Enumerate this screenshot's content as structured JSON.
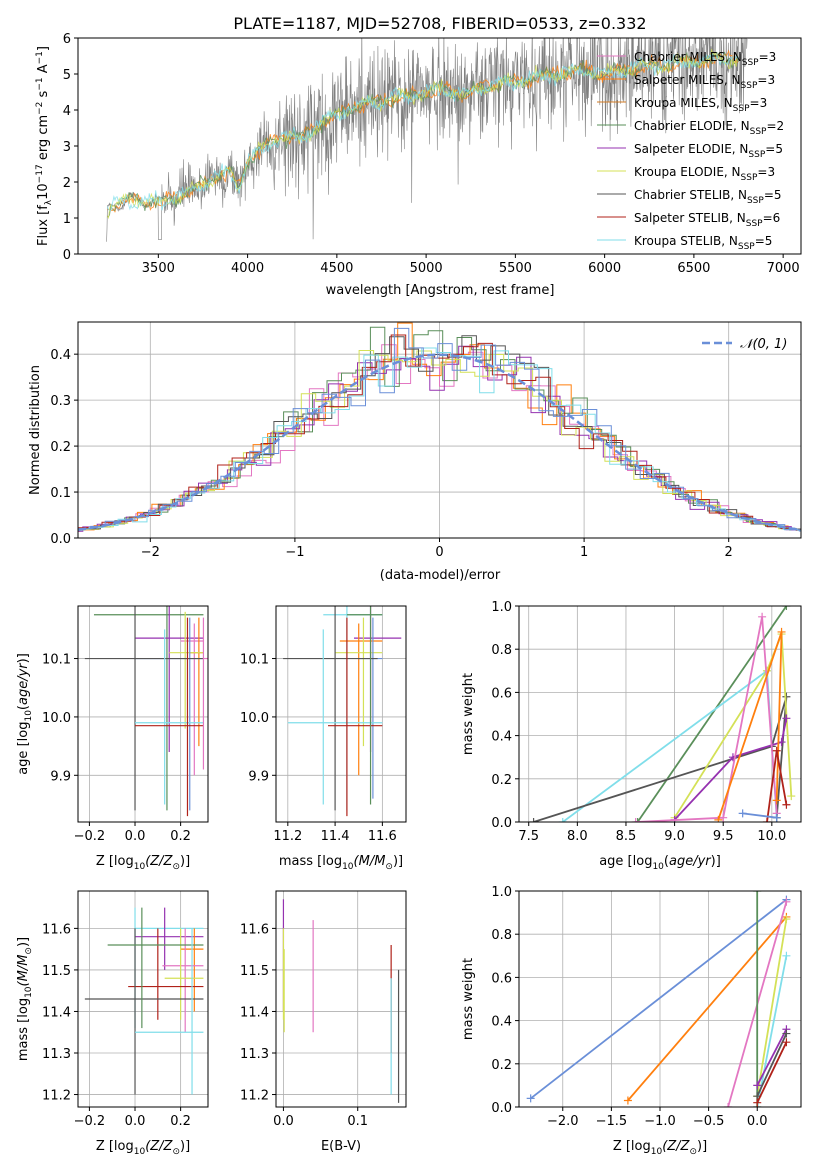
{
  "title": "PLATE=1187, MJD=52708, FIBERID=0533, z=0.332",
  "legend_colors": [
    "#e377c2",
    "#ff7f0e",
    "#d27a22",
    "#5a8f5a",
    "#9532b0",
    "#d4e157",
    "#555555",
    "#b0221a",
    "#80deea",
    "#6a8fd8"
  ],
  "chart_data": [
    {
      "type": "line",
      "panel": "spectrum",
      "xlabel": "wavelength [Angstrom, rest frame]",
      "ylabel": "Flux [f_λ 10^-17 erg cm^-2 s^-1 A^-1]",
      "xlim": [
        3050,
        7100
      ],
      "ylim": [
        0,
        6
      ],
      "x_ticks": [
        3500,
        4000,
        4500,
        5000,
        5500,
        6000,
        6500,
        7000
      ],
      "y_ticks": [
        0,
        1,
        2,
        3,
        4,
        5,
        6
      ],
      "legend": [
        {
          "name": "Chabrier MILES, N_SSP=3",
          "color": "#e377c2"
        },
        {
          "name": "Salpeter MILES, N_SSP=3",
          "color": "#ff7f0e"
        },
        {
          "name": "Kroupa MILES, N_SSP=3",
          "color": "#d27a22"
        },
        {
          "name": "Chabrier ELODIE, N_SSP=2",
          "color": "#5a8f5a"
        },
        {
          "name": "Salpeter ELODIE, N_SSP=5",
          "color": "#9532b0"
        },
        {
          "name": "Kroupa ELODIE, N_SSP=3",
          "color": "#d4e157"
        },
        {
          "name": "Chabrier STELIB, N_SSP=5",
          "color": "#555555"
        },
        {
          "name": "Salpeter STELIB, N_SSP=6",
          "color": "#b0221a"
        },
        {
          "name": "Kroupa STELIB, N_SSP=5",
          "color": "#80deea"
        }
      ],
      "legend_text": {
        "l0": "Chabrier MILES, N",
        "l1": "Salpeter MILES, N",
        "l2": "Kroupa MILES, N",
        "l3": "Chabrier ELODIE, N",
        "l4": "Salpeter ELODIE, N",
        "l5": "Kroupa ELODIE, N",
        "l6": "Chabrier STELIB, N",
        "l7": "Salpeter STELIB, N",
        "l8": "Kroupa STELIB, N",
        "sub": "SSP",
        "v0": "=3",
        "v1": "=3",
        "v2": "=3",
        "v3": "=2",
        "v4": "=5",
        "v5": "=3",
        "v6": "=5",
        "v7": "=6",
        "v8": "=5"
      },
      "continuum_points": [
        [
          3210,
          0
        ],
        [
          3215,
          1.2
        ],
        [
          3250,
          1.35
        ],
        [
          3300,
          1.45
        ],
        [
          3400,
          1.5
        ],
        [
          3500,
          1.4
        ],
        [
          3600,
          1.6
        ],
        [
          3700,
          1.8
        ],
        [
          3800,
          2.1
        ],
        [
          3900,
          2.3
        ],
        [
          3950,
          1.8
        ],
        [
          4000,
          2.6
        ],
        [
          4100,
          3.0
        ],
        [
          4200,
          3.3
        ],
        [
          4300,
          3.2
        ],
        [
          4400,
          3.6
        ],
        [
          4500,
          3.9
        ],
        [
          4600,
          4.1
        ],
        [
          4700,
          4.2
        ],
        [
          4800,
          4.3
        ],
        [
          4900,
          4.4
        ],
        [
          5000,
          4.5
        ],
        [
          5100,
          4.6
        ],
        [
          5200,
          4.4
        ],
        [
          5300,
          4.6
        ],
        [
          5400,
          4.7
        ],
        [
          5500,
          4.8
        ],
        [
          5600,
          4.9
        ],
        [
          5700,
          5.0
        ],
        [
          5800,
          5.05
        ],
        [
          5900,
          5.1
        ],
        [
          6000,
          5.0
        ],
        [
          6100,
          5.1
        ],
        [
          6200,
          5.2
        ],
        [
          6300,
          5.25
        ],
        [
          6400,
          5.3
        ],
        [
          6500,
          5.35
        ],
        [
          6600,
          5.4
        ],
        [
          6700,
          5.4
        ],
        [
          6800,
          5.45
        ]
      ]
    },
    {
      "type": "line",
      "panel": "residual-histogram",
      "xlabel": "(data-model)/error",
      "ylabel": "Normed distribution",
      "xlim": [
        -2.5,
        2.5
      ],
      "ylim": [
        0,
        0.47
      ],
      "x_ticks": [
        -2,
        -1,
        0,
        1,
        2
      ],
      "x_tick_labels": [
        "−2",
        "−1",
        "0",
        "1",
        "2"
      ],
      "y_ticks": [
        0.0,
        0.1,
        0.2,
        0.3,
        0.4
      ],
      "y_tick_labels": [
        "0.0",
        "0.1",
        "0.2",
        "0.3",
        "0.4"
      ],
      "legend": [
        {
          "name": "𝒩(0, 1)",
          "color": "#6a8fd8",
          "dash": true
        }
      ]
    },
    {
      "type": "scatter",
      "panel": "Z-age",
      "xlabel": "Z [log10(Z/Z_sun)]",
      "ylabel": "age [log10(age/yr)]",
      "xlim": [
        -0.25,
        0.32
      ],
      "ylim": [
        9.82,
        10.19
      ],
      "x_ticks": [
        -0.2,
        0.0,
        0.2
      ],
      "x_tick_labels": [
        "−0.2",
        "0.0",
        "0.2"
      ],
      "y_ticks": [
        9.9,
        10.0,
        10.1
      ],
      "y_tick_labels": [
        "9.9",
        "10.0",
        "10.1"
      ]
    },
    {
      "type": "scatter",
      "panel": "mass-age",
      "xlabel": "mass [log10(M/M_sun)]",
      "ylabel": "",
      "xlim": [
        11.15,
        11.7
      ],
      "ylim": [
        9.82,
        10.19
      ],
      "x_ticks": [
        11.2,
        11.4,
        11.6
      ],
      "x_tick_labels": [
        "11.2",
        "11.4",
        "11.6"
      ],
      "y_ticks": [
        9.9,
        10.0,
        10.1
      ],
      "y_tick_labels": [
        "9.9",
        "10.0",
        "10.1"
      ]
    },
    {
      "type": "line",
      "panel": "age-massweight",
      "xlabel": "age [log10(age/yr)]",
      "ylabel": "mass weight",
      "xlim": [
        7.4,
        10.3
      ],
      "ylim": [
        0,
        1
      ],
      "x_ticks": [
        7.5,
        8.0,
        8.5,
        9.0,
        9.5,
        10.0
      ],
      "x_tick_labels": [
        "7.5",
        "8.0",
        "8.5",
        "9.0",
        "9.5",
        "10.0"
      ],
      "y_ticks": [
        0,
        0.2,
        0.4,
        0.6,
        0.8,
        1.0
      ],
      "y_tick_labels": [
        "0.0",
        "0.2",
        "0.4",
        "0.6",
        "0.8",
        "1.0"
      ],
      "series": [
        {
          "color": "#5a8f5a",
          "points": [
            [
              8.62,
              0
            ],
            [
              10.15,
              1.0
            ]
          ]
        },
        {
          "color": "#80deea",
          "points": [
            [
              7.85,
              0
            ],
            [
              9.95,
              0.7
            ],
            [
              10.05,
              0.02
            ]
          ]
        },
        {
          "color": "#555555",
          "points": [
            [
              7.55,
              0
            ],
            [
              10.0,
              0.35
            ],
            [
              10.15,
              0.58
            ],
            [
              10.05,
              0.02
            ]
          ]
        },
        {
          "color": "#d4e157",
          "points": [
            [
              9.0,
              0.02
            ],
            [
              9.95,
              0.7
            ],
            [
              10.1,
              0.87
            ],
            [
              10.2,
              0.12
            ]
          ]
        },
        {
          "color": "#9532b0",
          "points": [
            [
              9.0,
              0.01
            ],
            [
              9.6,
              0.3
            ],
            [
              10.1,
              0.37
            ],
            [
              10.15,
              0.48
            ]
          ]
        },
        {
          "color": "#e377c2",
          "points": [
            [
              8.6,
              0.0
            ],
            [
              9.5,
              0.02
            ],
            [
              9.9,
              0.95
            ],
            [
              10.05,
              0.04
            ]
          ]
        },
        {
          "color": "#ff7f0e",
          "points": [
            [
              9.45,
              0.01
            ],
            [
              10.1,
              0.88
            ],
            [
              10.05,
              0.1
            ]
          ]
        },
        {
          "color": "#b0221a",
          "points": [
            [
              9.95,
              0.0
            ],
            [
              10.05,
              0.33
            ],
            [
              10.15,
              0.08
            ]
          ]
        },
        {
          "color": "#6a8fd8",
          "points": [
            [
              9.7,
              0.04
            ],
            [
              10.05,
              0.02
            ]
          ]
        }
      ]
    },
    {
      "type": "scatter",
      "panel": "Z-mass",
      "xlabel": "Z [log10(Z/Z_sun)]",
      "ylabel": "mass [log10(M/M_sun)]",
      "xlim": [
        -0.25,
        0.32
      ],
      "ylim": [
        11.17,
        11.69
      ],
      "x_ticks": [
        -0.2,
        0.0,
        0.2
      ],
      "x_tick_labels": [
        "−0.2",
        "0.0",
        "0.2"
      ],
      "y_ticks": [
        11.2,
        11.3,
        11.4,
        11.5,
        11.6
      ],
      "y_tick_labels": [
        "11.2",
        "11.3",
        "11.4",
        "11.5",
        "11.6"
      ]
    },
    {
      "type": "scatter",
      "panel": "EBV-mass",
      "xlabel": "E(B-V)",
      "ylabel": "",
      "xlim": [
        -0.01,
        0.165
      ],
      "ylim": [
        11.17,
        11.69
      ],
      "x_ticks": [
        0.0,
        0.1
      ],
      "x_tick_labels": [
        "0.0",
        "0.1"
      ],
      "y_ticks": [
        11.2,
        11.3,
        11.4,
        11.5,
        11.6
      ],
      "y_tick_labels": [
        "11.2",
        "11.3",
        "11.4",
        "11.5",
        "11.6"
      ]
    },
    {
      "type": "line",
      "panel": "Z-massweight",
      "xlabel": "Z [log10(Z/Z_sun)]",
      "ylabel": "mass weight",
      "xlim": [
        -2.45,
        0.45
      ],
      "ylim": [
        0,
        1
      ],
      "x_ticks": [
        -2.0,
        -1.5,
        -1.0,
        -0.5,
        0.0
      ],
      "x_tick_labels": [
        "−2.0",
        "−1.5",
        "−1.0",
        "−0.5",
        "0.0"
      ],
      "y_ticks": [
        0,
        0.2,
        0.4,
        0.6,
        0.8,
        1.0
      ],
      "y_tick_labels": [
        "0.0",
        "0.2",
        "0.4",
        "0.6",
        "0.8",
        "1.0"
      ],
      "series": [
        {
          "color": "#6a8fd8",
          "points": [
            [
              -2.33,
              0.04
            ],
            [
              0.3,
              0.96
            ]
          ]
        },
        {
          "color": "#ff7f0e",
          "points": [
            [
              -1.33,
              0.03
            ],
            [
              0.3,
              0.88
            ]
          ]
        },
        {
          "color": "#e377c2",
          "points": [
            [
              -0.3,
              0.0
            ],
            [
              0.3,
              0.95
            ]
          ]
        },
        {
          "color": "#d4e157",
          "points": [
            [
              0.0,
              0.05
            ],
            [
              0.3,
              0.87
            ]
          ]
        },
        {
          "color": "#80deea",
          "points": [
            [
              0.0,
              0.0
            ],
            [
              0.3,
              0.7
            ]
          ]
        },
        {
          "color": "#5a8f5a",
          "points": [
            [
              0.0,
              0.0
            ],
            [
              0.0,
              1.0
            ]
          ]
        },
        {
          "color": "#9532b0",
          "points": [
            [
              0.0,
              0.1
            ],
            [
              0.3,
              0.36
            ]
          ]
        },
        {
          "color": "#555555",
          "points": [
            [
              0.0,
              0.05
            ],
            [
              0.3,
              0.34
            ]
          ]
        },
        {
          "color": "#b0221a",
          "points": [
            [
              0.0,
              0.02
            ],
            [
              0.3,
              0.3
            ]
          ]
        }
      ]
    }
  ],
  "bottom_labels": {
    "z_label": "Z [log",
    "z_label_mid": "(Z/Z",
    "z_label_end": ")]",
    "mass_label": "mass [log",
    "mass_label_mid": "(M/M",
    "age_label": "age  [log",
    "age_label_mid": "(age/yr)]",
    "ebv_label": "E(B-V)",
    "mw_label": "mass weight",
    "age_y_label": "age  [log",
    "mass_y_label": "mass [log",
    "sub10": "10",
    "sun": "⊙",
    "flux_label": "Flux [f",
    "flux_lambda": "λ",
    "flux_mid": "10",
    "flux_exp": "−17",
    "flux_rest": " erg cm",
    "flux_e2": "−2",
    "flux_s": " s",
    "flux_e1": "−1",
    "flux_A": " A",
    "flux_end": "]"
  }
}
